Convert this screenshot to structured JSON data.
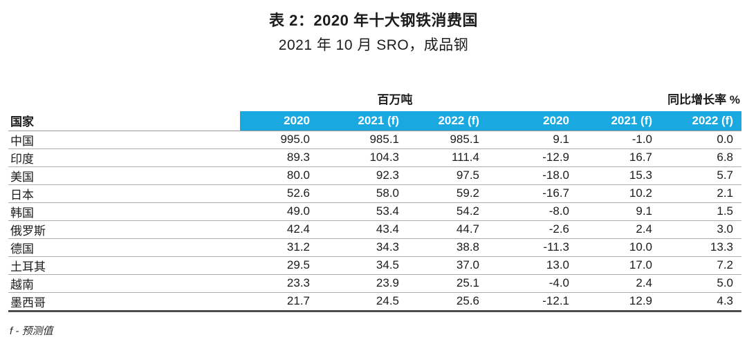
{
  "title": "表 2：2020 年十大钢铁消费国",
  "subtitle": "2021 年 10 月 SRO，成品钢",
  "table": {
    "country_header": "国家",
    "group_headers": {
      "tonnage": "百万吨",
      "growth": "同比增长率 %"
    },
    "year_headers": [
      "2020",
      "2021 (f)",
      "2022 (f)",
      "2020",
      "2021 (f)",
      "2022 (f)"
    ],
    "rows": [
      {
        "country": "中国",
        "values": [
          "995.0",
          "985.1",
          "985.1",
          "9.1",
          "-1.0",
          "0.0"
        ]
      },
      {
        "country": "印度",
        "values": [
          "89.3",
          "104.3",
          "111.4",
          "-12.9",
          "16.7",
          "6.8"
        ]
      },
      {
        "country": "美国",
        "values": [
          "80.0",
          "92.3",
          "97.5",
          "-18.0",
          "15.3",
          "5.7"
        ]
      },
      {
        "country": "日本",
        "values": [
          "52.6",
          "58.0",
          "59.2",
          "-16.7",
          "10.2",
          "2.1"
        ]
      },
      {
        "country": "韩国",
        "values": [
          "49.0",
          "53.4",
          "54.2",
          "-8.0",
          "9.1",
          "1.5"
        ]
      },
      {
        "country": "俄罗斯",
        "values": [
          "42.4",
          "43.4",
          "44.7",
          "-2.6",
          "2.4",
          "3.0"
        ]
      },
      {
        "country": "德国",
        "values": [
          "31.2",
          "34.3",
          "38.8",
          "-11.3",
          "10.0",
          "13.3"
        ]
      },
      {
        "country": "土耳其",
        "values": [
          "29.5",
          "34.5",
          "37.0",
          "13.0",
          "17.0",
          "7.2"
        ]
      },
      {
        "country": "越南",
        "values": [
          "23.3",
          "23.9",
          "25.1",
          "-4.0",
          "2.4",
          "5.0"
        ]
      },
      {
        "country": "墨西哥",
        "values": [
          "21.7",
          "24.5",
          "25.6",
          "-12.1",
          "12.9",
          "4.3"
        ]
      }
    ]
  },
  "footnote": "f - 预测值",
  "colors": {
    "header_blue": "#1AA8E0",
    "header_text": "#FFFFFF",
    "row_rule": "#ABABAB",
    "bottom_rule": "#4D4D4D"
  },
  "chart_data": {
    "type": "table",
    "title": "表 2：2020 年十大钢铁消费国",
    "subtitle": "2021 年 10 月 SRO，成品钢",
    "column_groups": [
      {
        "label": "百万吨",
        "columns": [
          "2020",
          "2021 (f)",
          "2022 (f)"
        ]
      },
      {
        "label": "同比增长率 %",
        "columns": [
          "2020",
          "2021 (f)",
          "2022 (f)"
        ]
      }
    ],
    "columns": [
      "国家",
      "百万吨 2020",
      "百万吨 2021 (f)",
      "百万吨 2022 (f)",
      "同比增长率% 2020",
      "同比增长率% 2021 (f)",
      "同比增长率% 2022 (f)"
    ],
    "rows": [
      [
        "中国",
        995.0,
        985.1,
        985.1,
        9.1,
        -1.0,
        0.0
      ],
      [
        "印度",
        89.3,
        104.3,
        111.4,
        -12.9,
        16.7,
        6.8
      ],
      [
        "美国",
        80.0,
        92.3,
        97.5,
        -18.0,
        15.3,
        5.7
      ],
      [
        "日本",
        52.6,
        58.0,
        59.2,
        -16.7,
        10.2,
        2.1
      ],
      [
        "韩国",
        49.0,
        53.4,
        54.2,
        -8.0,
        9.1,
        1.5
      ],
      [
        "俄罗斯",
        42.4,
        43.4,
        44.7,
        -2.6,
        2.4,
        3.0
      ],
      [
        "德国",
        31.2,
        34.3,
        38.8,
        -11.3,
        10.0,
        13.3
      ],
      [
        "土耳其",
        29.5,
        34.5,
        37.0,
        13.0,
        17.0,
        7.2
      ],
      [
        "越南",
        23.3,
        23.9,
        25.1,
        -4.0,
        2.4,
        5.0
      ],
      [
        "墨西哥",
        21.7,
        24.5,
        25.6,
        -12.1,
        12.9,
        4.3
      ]
    ],
    "footnote": "f - 预测值"
  }
}
